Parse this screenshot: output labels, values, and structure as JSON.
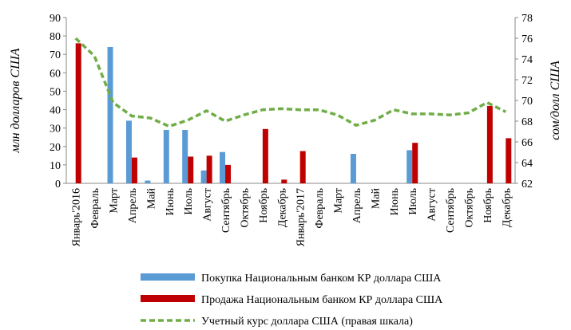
{
  "chart_data": {
    "type": "bar",
    "y_label": "млн долларов США",
    "y2_label": "сом/долл США",
    "categories": [
      "Январь'2016",
      "Февраль",
      "Март",
      "Апрель",
      "Май",
      "Июнь",
      "Июль",
      "Август",
      "Сентябрь",
      "Октябрь",
      "Ноябрь",
      "Декабрь",
      "Январь'2017",
      "Февраль",
      "Март",
      "Апрель",
      "Май",
      "Июнь",
      "Июль",
      "Август",
      "Сентябрь",
      "Октябрь",
      "Ноябрь",
      "Декабрь"
    ],
    "series": [
      {
        "name": "Покупка Национальным банком КР доллара США",
        "type": "bar",
        "color": "#5b9bd5",
        "values": [
          0,
          0,
          74,
          34,
          1.5,
          29,
          29,
          7,
          17,
          0,
          0,
          0,
          0,
          0,
          0,
          16,
          0,
          0,
          18,
          0,
          0,
          0,
          0,
          0
        ]
      },
      {
        "name": "Продажа Национальным банком КР доллара США",
        "type": "bar",
        "color": "#c00000",
        "values": [
          76,
          0,
          0,
          14,
          0,
          0,
          14.5,
          15,
          10,
          0,
          29.5,
          2,
          17.5,
          0,
          0,
          0,
          0,
          0,
          22,
          0,
          0,
          0,
          42,
          24.5
        ]
      },
      {
        "name": "Учетный курс доллара США (правая шкала)",
        "type": "line",
        "axis": "y2",
        "color": "#70ad47",
        "values": [
          76,
          74.3,
          69.8,
          68.5,
          68.3,
          67.5,
          68.1,
          69,
          68,
          68.6,
          69.1,
          69.2,
          69.1,
          69.1,
          68.6,
          67.6,
          68.1,
          69.1,
          68.7,
          68.7,
          68.6,
          68.8,
          69.8,
          68.9
        ]
      }
    ],
    "ylim": [
      0,
      90
    ],
    "yticks": [
      0,
      10,
      20,
      30,
      40,
      50,
      60,
      70,
      80,
      90
    ],
    "y2lim": [
      62,
      78
    ],
    "y2ticks": [
      62,
      64,
      66,
      68,
      70,
      72,
      74,
      76,
      78
    ]
  }
}
